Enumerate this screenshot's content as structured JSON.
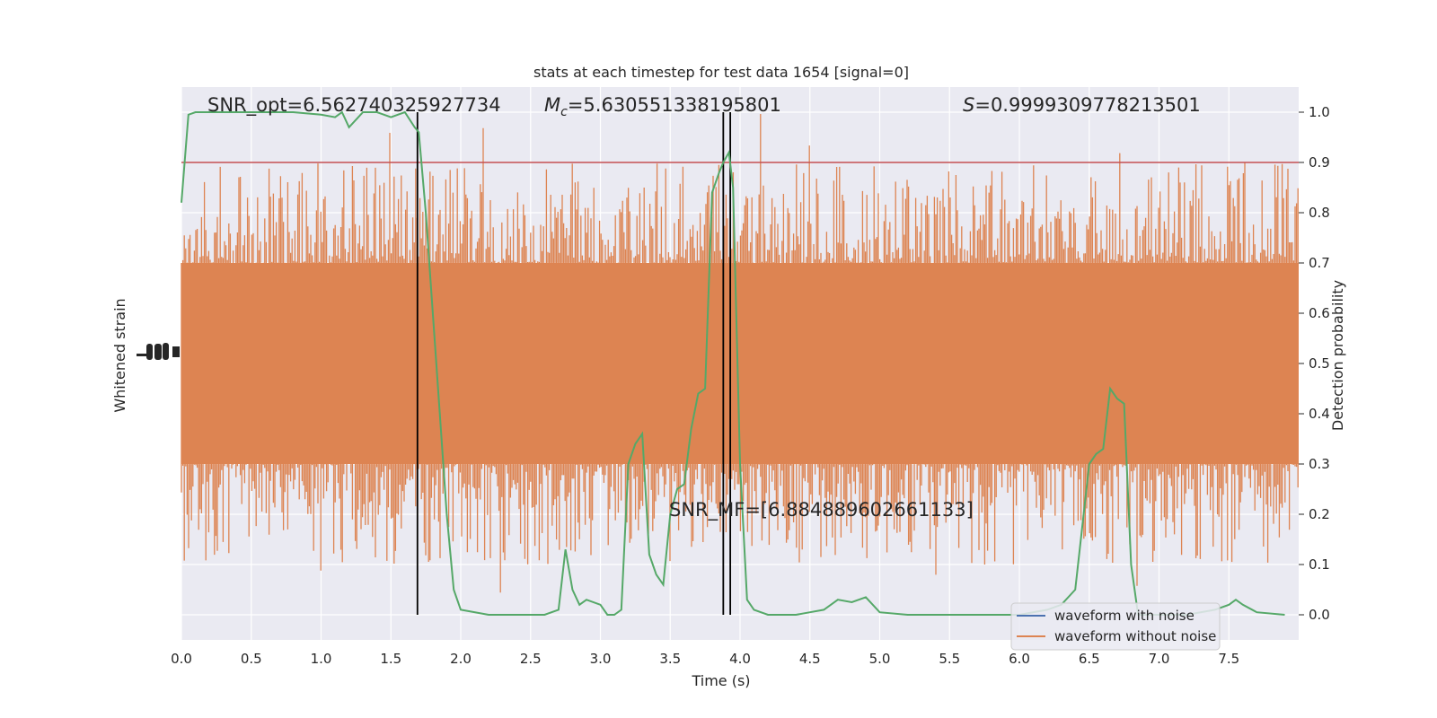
{
  "chart_data": {
    "type": "line",
    "title": "stats at each timestep for test data 1654 [signal=0]",
    "xlabel": "Time (s)",
    "ylabel_left": "Whitened strain",
    "ylabel_right": "Detection probability",
    "xlim": [
      0.0,
      8.0
    ],
    "ylim_right": [
      -0.05,
      1.05
    ],
    "x_ticks": [
      "0.0",
      "0.5",
      "1.0",
      "1.5",
      "2.0",
      "2.5",
      "3.0",
      "3.5",
      "4.0",
      "4.5",
      "5.0",
      "5.5",
      "6.0",
      "6.5",
      "7.0",
      "7.5"
    ],
    "x_tick_values": [
      0.0,
      0.5,
      1.0,
      1.5,
      2.0,
      2.5,
      3.0,
      3.5,
      4.0,
      4.5,
      5.0,
      5.5,
      6.0,
      6.5,
      7.0,
      7.5
    ],
    "y_ticks_right": [
      "0.0",
      "0.1",
      "0.2",
      "0.3",
      "0.4",
      "0.5",
      "0.6",
      "0.7",
      "0.8",
      "0.9",
      "1.0"
    ],
    "y_tick_values_right": [
      0.0,
      0.1,
      0.2,
      0.3,
      0.4,
      0.5,
      0.6,
      0.7,
      0.8,
      0.9,
      1.0
    ],
    "annotations": {
      "snr_opt": "SNR_opt=6.562740325927734",
      "mc_prefix": "M",
      "mc_sub": "c",
      "mc_value": "=5.630551338195801",
      "s_prefix": "S",
      "s_value": "=0.9999309778213501",
      "snr_mf": "SNR_MF=[6.884889602661133]"
    },
    "threshold": 0.9,
    "vertical_lines_x": [
      1.69,
      3.88,
      3.93
    ],
    "legend": {
      "placement": "lower-right",
      "entries": [
        "waveform with noise",
        "waveform without noise"
      ]
    },
    "colors": {
      "noise_waveform": "#dd8452",
      "clean_waveform": "#4c72b0",
      "probability": "#55a868",
      "threshold": "#c44e52",
      "vlines": "#000000",
      "background": "#eaeaf2",
      "grid": "#ffffff"
    },
    "series": [
      {
        "name": "Detection probability",
        "x": [
          0.0,
          0.05,
          0.1,
          0.2,
          0.4,
          0.6,
          0.8,
          1.0,
          1.1,
          1.15,
          1.2,
          1.3,
          1.4,
          1.5,
          1.6,
          1.67,
          1.7,
          1.75,
          1.8,
          1.85,
          1.9,
          1.95,
          2.0,
          2.2,
          2.4,
          2.5,
          2.6,
          2.7,
          2.75,
          2.8,
          2.85,
          2.9,
          3.0,
          3.05,
          3.1,
          3.15,
          3.2,
          3.25,
          3.3,
          3.35,
          3.4,
          3.45,
          3.5,
          3.55,
          3.6,
          3.65,
          3.7,
          3.75,
          3.8,
          3.85,
          3.88,
          3.92,
          3.95,
          4.0,
          4.05,
          4.1,
          4.2,
          4.4,
          4.5,
          4.6,
          4.7,
          4.8,
          4.9,
          5.0,
          5.2,
          5.4,
          6.0,
          6.2,
          6.3,
          6.4,
          6.5,
          6.55,
          6.6,
          6.65,
          6.7,
          6.75,
          6.8,
          6.85,
          6.9,
          7.0,
          7.2,
          7.4,
          7.5,
          7.55,
          7.6,
          7.7,
          7.9
        ],
        "values": [
          0.82,
          0.995,
          1.0,
          1.0,
          1.0,
          1.0,
          1.0,
          0.995,
          0.99,
          1.0,
          0.97,
          1.0,
          1.0,
          0.99,
          1.0,
          0.97,
          0.96,
          0.8,
          0.6,
          0.4,
          0.2,
          0.05,
          0.01,
          0.0,
          0.0,
          0.0,
          0.0,
          0.01,
          0.13,
          0.05,
          0.02,
          0.03,
          0.02,
          0.0,
          0.0,
          0.01,
          0.3,
          0.34,
          0.36,
          0.12,
          0.08,
          0.06,
          0.2,
          0.25,
          0.26,
          0.37,
          0.44,
          0.45,
          0.84,
          0.88,
          0.9,
          0.92,
          0.85,
          0.3,
          0.03,
          0.01,
          0.0,
          0.0,
          0.005,
          0.01,
          0.03,
          0.025,
          0.035,
          0.005,
          0.0,
          0.0,
          0.0,
          0.01,
          0.02,
          0.05,
          0.3,
          0.32,
          0.33,
          0.45,
          0.43,
          0.42,
          0.1,
          0.0,
          0.0,
          0.0,
          0.0,
          0.01,
          0.02,
          0.03,
          0.02,
          0.005,
          0.0
        ]
      }
    ]
  }
}
